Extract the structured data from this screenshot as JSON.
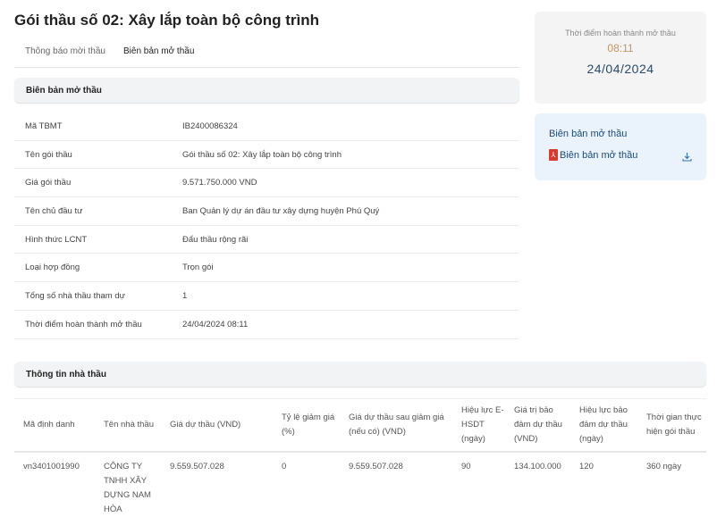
{
  "title": "Gói thầu số 02: Xây lắp toàn bộ công trình",
  "tabs": [
    {
      "label": "Thông báo mời thầu"
    },
    {
      "label": "Biên bản mở thầu"
    }
  ],
  "section1": {
    "title": "Biên bản mở thầu",
    "rows": [
      {
        "label": "Mã TBMT",
        "value": "IB2400086324"
      },
      {
        "label": "Tên gói thầu",
        "value": "Gói thầu số 02: Xây lắp toàn bộ công trình"
      },
      {
        "label": "Giá gói thầu",
        "value": "9.571.750.000 VND"
      },
      {
        "label": "Tên chủ đầu tư",
        "value": "Ban Quản lý dự án đầu tư xây dựng huyện Phú Quý"
      },
      {
        "label": "Hình thức LCNT",
        "value": "Đấu thầu rộng rãi"
      },
      {
        "label": "Loại hợp đồng",
        "value": "Trọn gói"
      },
      {
        "label": "Tổng số nhà thầu tham dự",
        "value": "1"
      },
      {
        "label": "Thời điểm hoàn thành mở thầu",
        "value": "24/04/2024 08:11"
      }
    ]
  },
  "timebox": {
    "label": "Thời điểm hoàn thành mở thầu",
    "time": "08:11",
    "date": "24/04/2024",
    "time_color": "#c8955a",
    "date_color": "#2b4a6a"
  },
  "downloads": {
    "title": "Biên bản mở thầu",
    "file_label": "Biên bản mở thầu",
    "file_icon": "pdf-icon",
    "action_icon": "download-icon"
  },
  "section2": {
    "title": "Thông tin nhà thầu",
    "headers": [
      "Mã định danh",
      "Tên nhà thầu",
      "Giá dự thầu (VND)",
      "Tỷ lệ giảm giá (%)",
      "Giá dự thầu sau giảm giá (nếu có) (VND)",
      "Hiệu lực E-HSDT (ngày)",
      "Giá trị bảo đảm dự thầu (VND)",
      "Hiệu lực bảo đảm dự thầu (ngày)",
      "Thời gian thực hiện gói thầu"
    ],
    "rows": [
      [
        "vn3401001990",
        "CÔNG TY TNHH XÂY DỰNG NAM HÒA",
        "9.559.507.028",
        "0",
        "9.559.507.028",
        "90",
        "134.100.000",
        "120",
        "360 ngày"
      ]
    ]
  }
}
